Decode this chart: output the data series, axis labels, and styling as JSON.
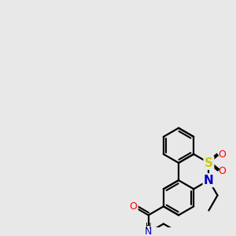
{
  "background_color": "#e8e8e8",
  "bond_color": "#000000",
  "atom_colors": {
    "O": "#ff0000",
    "N": "#0000cc",
    "S": "#cccc00",
    "C": "#000000",
    "H": "#000000"
  },
  "figsize": [
    3.0,
    3.0
  ],
  "dpi": 100,
  "lw": 1.6
}
